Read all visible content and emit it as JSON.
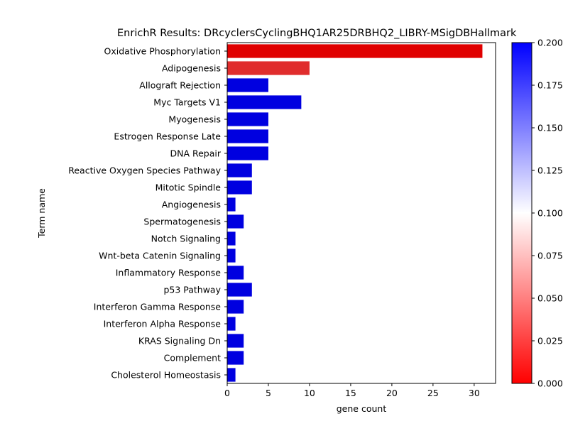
{
  "chart_data": {
    "type": "bar",
    "orientation": "horizontal",
    "title": "EnrichR Results: DRcyclersCyclingBHQ1AR25DRBHQ2_LIBRY-MSigDBHallmark",
    "xlabel": "gene count",
    "ylabel": "Term name",
    "xlim": [
      0,
      32.6
    ],
    "xticks": [
      0,
      5,
      10,
      15,
      20,
      25,
      30
    ],
    "grid": false,
    "categories": [
      "Oxidative Phosphorylation",
      "Adipogenesis",
      "Allograft Rejection",
      "Myc Targets V1",
      "Myogenesis",
      "Estrogen Response Late",
      "DNA Repair",
      "Reactive Oxygen Species Pathway",
      "Mitotic Spindle",
      "Angiogenesis",
      "Spermatogenesis",
      "Notch Signaling",
      "Wnt-beta Catenin Signaling",
      "Inflammatory Response",
      "p53 Pathway",
      "Interferon Gamma Response",
      "Interferon Alpha Response",
      "KRAS Signaling Dn",
      "Complement",
      "Cholesterol Homeostasis"
    ],
    "values": [
      31,
      10,
      5,
      9,
      5,
      5,
      5,
      3,
      3,
      1,
      2,
      1,
      1,
      2,
      3,
      2,
      1,
      2,
      2,
      1
    ],
    "color_values": [
      0.0,
      0.02,
      0.2,
      0.2,
      0.2,
      0.2,
      0.2,
      0.2,
      0.2,
      0.2,
      0.2,
      0.2,
      0.2,
      0.2,
      0.2,
      0.2,
      0.2,
      0.2,
      0.2,
      0.2
    ],
    "colorbar": {
      "range": [
        0,
        0.2
      ],
      "ticks": [
        "0.000",
        "0.025",
        "0.050",
        "0.075",
        "0.100",
        "0.125",
        "0.150",
        "0.175",
        "0.200"
      ],
      "colors": [
        "#ff0000",
        "#ffffff",
        "#0000ff"
      ]
    }
  }
}
